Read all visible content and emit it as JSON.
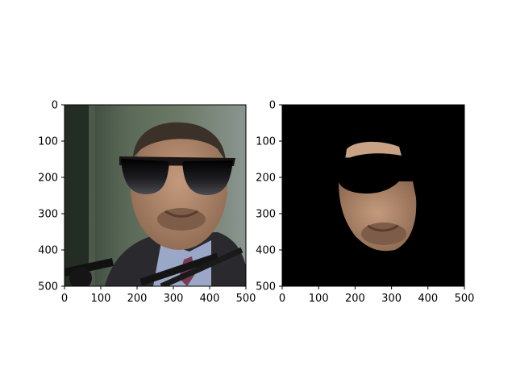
{
  "chart_data": [
    {
      "type": "image",
      "panel": "left",
      "content": "photo of man in suit with sunglasses overlay",
      "xlim": [
        0,
        500
      ],
      "ylim": [
        500,
        0
      ],
      "x_ticks": [
        0,
        100,
        200,
        300,
        400,
        500
      ],
      "y_ticks": [
        0,
        100,
        200,
        300,
        400,
        500
      ],
      "title": "",
      "xlabel": "",
      "ylabel": ""
    },
    {
      "type": "image",
      "panel": "right",
      "content": "masked face region on black background, eye area blacked out",
      "xlim": [
        0,
        500
      ],
      "ylim": [
        500,
        0
      ],
      "x_ticks": [
        0,
        100,
        200,
        300,
        400,
        500
      ],
      "y_ticks": [
        0,
        100,
        200,
        300,
        400,
        500
      ],
      "title": "",
      "xlabel": "",
      "ylabel": ""
    }
  ],
  "colors": {
    "background_left": "#3a4536",
    "mask_background": "#000000",
    "skin": "#b08a6e",
    "hair": "#3b3129",
    "suit": "#2a2a2e",
    "shirt": "#9aa7c6",
    "tie": "#7a3a55",
    "sunglasses": "#101012"
  }
}
